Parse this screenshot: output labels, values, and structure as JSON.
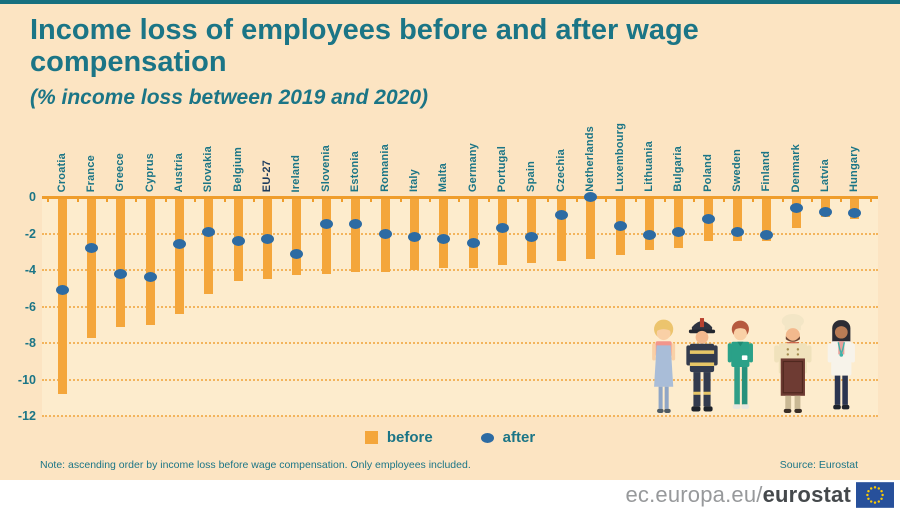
{
  "header": {
    "title": "Income loss of employees before and after wage compensation",
    "subtitle": "(%  income loss between 2019 and 2020)"
  },
  "chart_data": {
    "type": "bar",
    "title": "Income loss of employees before and after wage compensation",
    "subtitle": "(% income loss between 2019 and 2020)",
    "categories": [
      "Croatia",
      "France",
      "Greece",
      "Cyprus",
      "Austria",
      "Slovakia",
      "Belgium",
      "EU-27",
      "Ireland",
      "Slovenia",
      "Estonia",
      "Romania",
      "Italy",
      "Malta",
      "Germany",
      "Portugal",
      "Spain",
      "Czechia",
      "Netherlands",
      "Luxembourg",
      "Lithuania",
      "Bulgaria",
      "Poland",
      "Sweden",
      "Finland",
      "Denmark",
      "Latvia",
      "Hungary"
    ],
    "series": [
      {
        "name": "before",
        "mark": "bar",
        "color": "#f4a63b",
        "values": [
          -10.8,
          -7.7,
          -7.1,
          -7.0,
          -6.4,
          -5.3,
          -4.6,
          -4.5,
          -4.3,
          -4.2,
          -4.1,
          -4.1,
          -4.0,
          -3.9,
          -3.9,
          -3.7,
          -3.6,
          -3.5,
          -3.4,
          -3.2,
          -2.9,
          -2.8,
          -2.4,
          -2.4,
          -2.4,
          -1.7,
          -1.1,
          -1.2
        ]
      },
      {
        "name": "after",
        "mark": "dot",
        "color": "#2d6ba3",
        "values": [
          -5.1,
          -2.8,
          -4.2,
          -4.4,
          -2.6,
          -1.9,
          -2.4,
          -2.3,
          -3.1,
          -1.5,
          -1.5,
          -2.0,
          -2.2,
          -2.3,
          -2.5,
          -1.7,
          -2.2,
          -1.0,
          0.0,
          -1.6,
          -2.1,
          -1.9,
          -1.2,
          -1.9,
          -2.1,
          -0.6,
          -0.8,
          -0.9
        ]
      }
    ],
    "legend": [
      "before",
      "after"
    ],
    "legend_position": "bottom-center",
    "ylim": [
      -12,
      0
    ],
    "yticks": [
      0,
      -2,
      -4,
      -6,
      -8,
      -10,
      -12
    ],
    "grid": "horizontal-dotted",
    "highlight_category": "EU-27",
    "xlabel": "",
    "ylabel": ""
  },
  "note": "Note: ascending order by income loss before wage compensation. Only employees included.",
  "source": "Source:  Eurostat",
  "footer": {
    "url_prefix": "ec.europa.eu/",
    "url_bold": "eurostat",
    "logo": "eu-flag-icon"
  },
  "illustration": {
    "people": [
      "baker",
      "firefighter",
      "nurse",
      "chef",
      "doctor"
    ]
  },
  "colors": {
    "background": "#fce4c2",
    "plot_background": "#fdeccd",
    "bar_before": "#f4a63b",
    "dot_after": "#2d6ba3",
    "title_teal": "#1b7586",
    "highlight_label": "#1d3c5e",
    "axis_line_orange": "#ef9d2c",
    "footer_gray": "#97999b",
    "footer_dark": "#45494c",
    "eu_flag_blue": "#27509b",
    "eu_flag_stars": "#ffcc00"
  }
}
